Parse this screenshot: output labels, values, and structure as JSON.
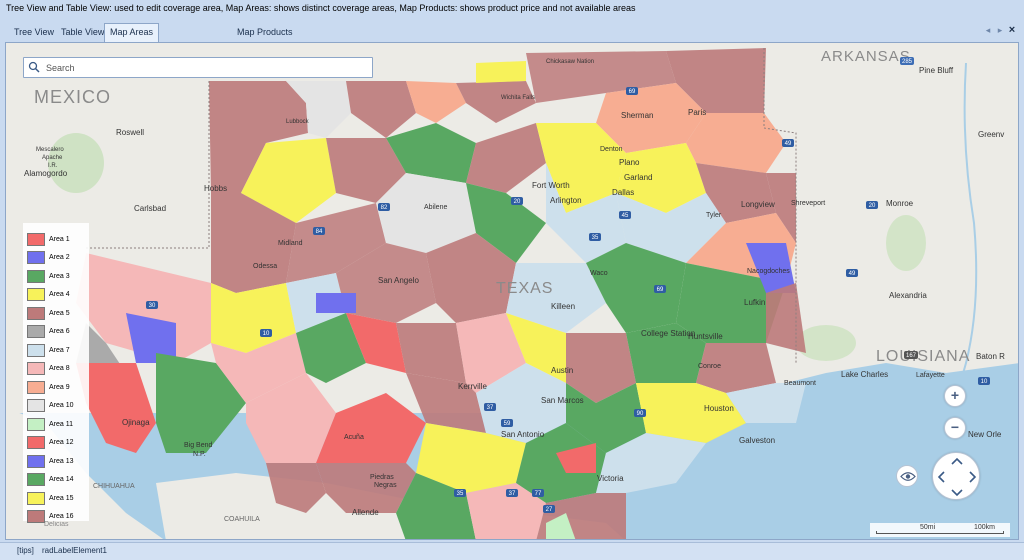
{
  "description": "Tree View and Table View: used to edit coverage area, Map Areas: shows distinct coverage areas, Map Products: shows product price and not available areas",
  "tabs": [
    {
      "label": "Tree View"
    },
    {
      "label": "Table View"
    },
    {
      "label": "Map Areas",
      "active": true
    },
    {
      "label": "Map Products"
    }
  ],
  "window_controls": {
    "prev": "◂",
    "next": "▸",
    "close": "×"
  },
  "search": {
    "placeholder": "Search",
    "value": ""
  },
  "legend": [
    {
      "label": "Area 1",
      "color": "#f26a6a"
    },
    {
      "label": "Area 2",
      "color": "#7070ee"
    },
    {
      "label": "Area 3",
      "color": "#59a862"
    },
    {
      "label": "Area 4",
      "color": "#f7f25a"
    },
    {
      "label": "Area 5",
      "color": "#bd7a7a"
    },
    {
      "label": "Area 6",
      "color": "#aaaaaa"
    },
    {
      "label": "Area 7",
      "color": "#cde0ec"
    },
    {
      "label": "Area 8",
      "color": "#f5b8b8"
    },
    {
      "label": "Area 9",
      "color": "#f7ad92"
    },
    {
      "label": "Area 10",
      "color": "#e4e4e4"
    },
    {
      "label": "Area 11",
      "color": "#c4f0c4"
    },
    {
      "label": "Area 12",
      "color": "#f26a6a"
    },
    {
      "label": "Area 13",
      "color": "#7070ee"
    },
    {
      "label": "Area 14",
      "color": "#59a862"
    },
    {
      "label": "Area 15",
      "color": "#f7f25a"
    },
    {
      "label": "Area 16",
      "color": "#bd7a7a"
    }
  ],
  "map": {
    "labels": {
      "mexico": "MEXICO",
      "arkansas": "ARKANSAS",
      "louisiana": "LOUISIANA",
      "texas": "TEXAS",
      "chihuahua": "CHIHUAHUA",
      "coahuila": "COAHUILA",
      "roswell": "Roswell",
      "mescalero": "Mescalero",
      "apache": "Apache",
      "ir": "I.R.",
      "alamogordo": "Alamogordo",
      "carlsbad": "Carlsbad",
      "hobbs": "Hobbs",
      "lubbock": "Lubbock",
      "chickasaw": "Chickasaw Nation",
      "wichita_falls": "Wichita Falls",
      "sherman": "Sherman",
      "paris": "Paris",
      "denton": "Denton",
      "plano": "Plano",
      "garland": "Garland",
      "fort_worth": "Fort Worth",
      "dallas": "Dallas",
      "arlington": "Arlington",
      "abilene": "Abilene",
      "midland": "Midland",
      "odessa": "Odessa",
      "tyler": "Tyler",
      "longview": "Longview",
      "shreveport": "Shreveport",
      "monroe": "Monroe",
      "pine_bluff": "Pine Bluff",
      "greenville": "Greenv",
      "san_angelo": "San Angelo",
      "waco": "Waco",
      "killeen": "Killeen",
      "nacogdoches": "Nacogdoches",
      "lufkin": "Lufkin",
      "alexandria": "Alexandria",
      "college_station": "College Station",
      "huntsville": "Huntsville",
      "conroe": "Conroe",
      "austin": "Austin",
      "kerrville": "Kerrville",
      "san_marcos": "San Marcos",
      "san_antonio": "San Antonio",
      "houston": "Houston",
      "beaumont": "Beaumont",
      "lake_charles": "Lake Charles",
      "lafayette": "Lafayette",
      "baton_rouge": "Baton R",
      "new_orleans": "New Orle",
      "galveston": "Galveston",
      "ojinaga": "Ojinaga",
      "big_bend": "Big Bend",
      "np": "N.P.",
      "acuna": "Acuña",
      "piedras": "Piedras",
      "negras": "Negras",
      "allende": "Allende",
      "victoria": "Victoria",
      "delicias": "Delicias"
    },
    "shields": [
      "285",
      "82",
      "84",
      "20",
      "35",
      "30",
      "10",
      "45",
      "69",
      "49",
      "49",
      "20",
      "167",
      "10",
      "69",
      "90",
      "37",
      "59",
      "35",
      "77",
      "37",
      "27"
    ]
  },
  "scale": {
    "mi": "50mi",
    "km": "100km"
  },
  "zoom": {
    "in": "+",
    "out": "−"
  },
  "status": {
    "tips": "[tips]",
    "element": "radLabelElement1"
  }
}
